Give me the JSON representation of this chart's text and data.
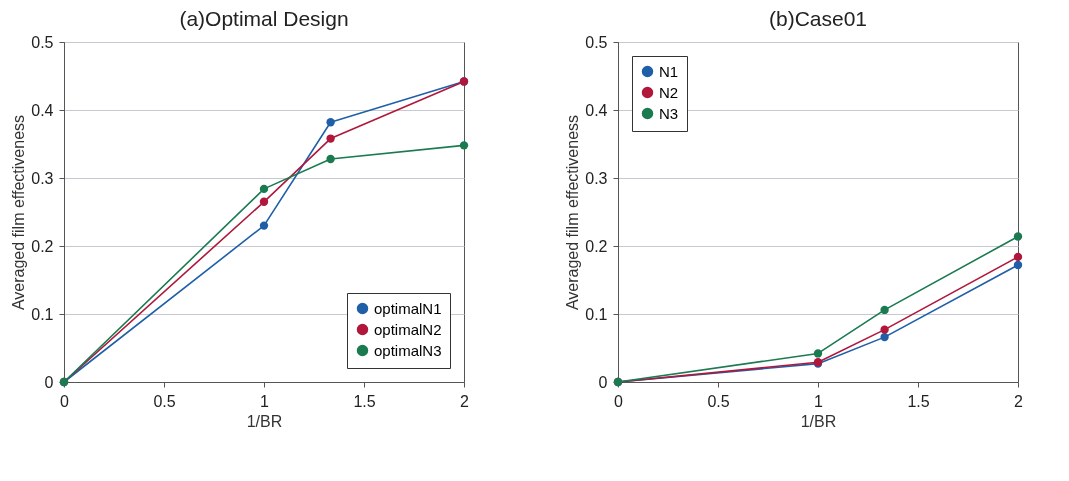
{
  "chart_data": [
    {
      "type": "line",
      "title": "(a)Optimal Design",
      "xlabel": "1/BR",
      "ylabel": "Averaged film effectiveness",
      "x": [
        0,
        1,
        1.333,
        2
      ],
      "xlim": [
        0,
        2
      ],
      "xticks": [
        0,
        0.5,
        1,
        1.5,
        2
      ],
      "ylim": [
        0,
        0.5
      ],
      "yticks": [
        0,
        0.1,
        0.2,
        0.3,
        0.4,
        0.5
      ],
      "grid": "y",
      "legend": "bottom right",
      "marker": "circle",
      "line_style": "solid",
      "series": [
        {
          "name": "optimalN1",
          "color": "#1f5fa8",
          "values": [
            0,
            0.23,
            0.382,
            0.442
          ]
        },
        {
          "name": "optimalN2",
          "color": "#b0173a",
          "values": [
            0,
            0.265,
            0.358,
            0.442
          ]
        },
        {
          "name": "optimalN3",
          "color": "#1a7a50",
          "values": [
            0,
            0.284,
            0.328,
            0.348
          ]
        }
      ]
    },
    {
      "type": "line",
      "title": "(b)Case01",
      "xlabel": "1/BR",
      "ylabel": "Averaged film effectiveness",
      "x": [
        0,
        1,
        1.333,
        2
      ],
      "xlim": [
        0,
        2
      ],
      "xticks": [
        0,
        0.5,
        1,
        1.5,
        2
      ],
      "ylim": [
        0,
        0.5
      ],
      "yticks": [
        0,
        0.1,
        0.2,
        0.3,
        0.4,
        0.5
      ],
      "grid": "y",
      "legend": "top left",
      "marker": "circle",
      "line_style": "solid",
      "series": [
        {
          "name": "N1",
          "color": "#1f5fa8",
          "values": [
            0,
            0.027,
            0.066,
            0.172
          ]
        },
        {
          "name": "N2",
          "color": "#b0173a",
          "values": [
            0,
            0.029,
            0.077,
            0.184
          ]
        },
        {
          "name": "N3",
          "color": "#1a7a50",
          "values": [
            0,
            0.042,
            0.106,
            0.214
          ]
        }
      ]
    }
  ]
}
